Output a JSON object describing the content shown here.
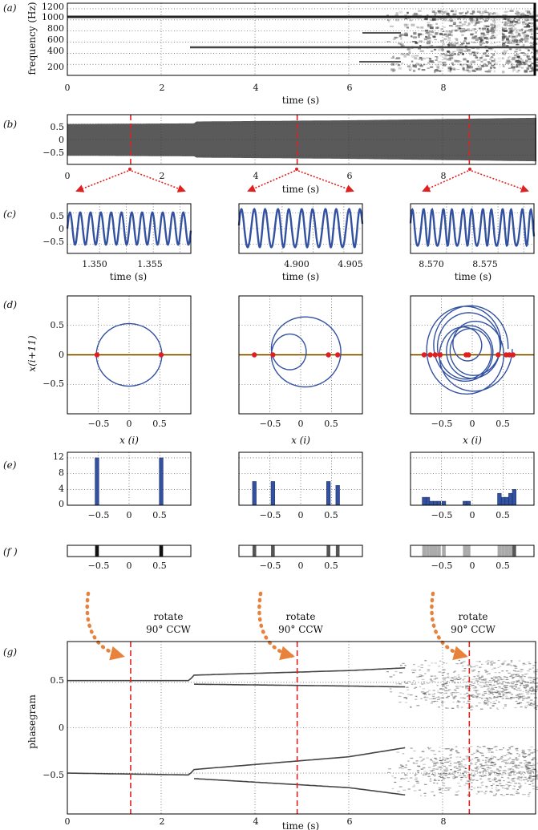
{
  "colors": {
    "blue": "#3251a0",
    "red": "#e02020",
    "orange": "#e8813a",
    "yellow": "#f2b21c",
    "gray": "#5a5a5a"
  },
  "panels": {
    "a": {
      "label": "(a)",
      "ylabel": "frequency (Hz)",
      "xlabel": "time (s)",
      "yticks": [
        "1200",
        "1000",
        "800",
        "600",
        "400",
        "200"
      ],
      "xticks": [
        "0",
        "2",
        "4",
        "6",
        "8"
      ]
    },
    "b": {
      "label": "(b)",
      "xlabel": "time (s)",
      "yticks": [
        "0.5",
        "0",
        "−0.5"
      ],
      "xticks": [
        "0",
        "2",
        "4",
        "6",
        "8"
      ]
    },
    "c": {
      "label": "(c)",
      "xlabel": "time (s)",
      "yticks": [
        "0.5",
        "0",
        "−0.5"
      ],
      "windows": [
        {
          "xticks": [
            "1.350",
            "1.355"
          ]
        },
        {
          "xticks": [
            "4.900",
            "4.905"
          ]
        },
        {
          "xticks": [
            "8.570",
            "8.575"
          ]
        }
      ]
    },
    "d": {
      "label": "(d)",
      "ylabel": "x(i+11)",
      "xlabel": "x (i)",
      "yticks": [
        "0.5",
        "0",
        "−0.5"
      ],
      "xticks": [
        "−0.5",
        "0",
        "0.5"
      ]
    },
    "e": {
      "label": "(e)",
      "yticks": [
        "12",
        "8",
        "4",
        "0"
      ],
      "xticks": [
        "−0.5",
        "0",
        "0.5"
      ]
    },
    "f": {
      "label": "(f )",
      "xticks": [
        "−0.5",
        "0",
        "0.5"
      ]
    },
    "g": {
      "label": "(g)",
      "ylabel": "phasegram",
      "xlabel": "time (s)",
      "yticks": [
        "0.5",
        "0",
        "−0.5"
      ],
      "xticks": [
        "0",
        "2",
        "4",
        "6",
        "8"
      ]
    }
  },
  "annotations": {
    "rotate_line1": "rotate",
    "rotate_line2": "90° CCW"
  },
  "chart_data": [
    {
      "panel": "a",
      "type": "heatmap",
      "title": "",
      "xlabel": "time (s)",
      "ylabel": "frequency (Hz)",
      "xlim": [
        0,
        10
      ],
      "ylim": [
        0,
        1300
      ],
      "tones": [
        {
          "freq": 1040,
          "t_start": 0,
          "t_end": 10
        },
        {
          "freq": 520,
          "t_start": 2.7,
          "t_end": 10
        },
        {
          "freq": 760,
          "t_start": 6.3,
          "t_end": 7.2
        },
        {
          "freq": 260,
          "t_start": 6.2,
          "t_end": 7.2
        }
      ],
      "broadband_region": {
        "t_start": 6.8,
        "t_end": 10,
        "note": "increasingly noisy spectrum"
      }
    },
    {
      "panel": "b",
      "type": "area",
      "xlabel": "time (s)",
      "xlim": [
        0,
        10
      ],
      "ylim": [
        -0.8,
        0.8
      ],
      "envelope": {
        "t": [
          0,
          2.7,
          2.71,
          6.0,
          8.0,
          10.0
        ],
        "upper": [
          0.5,
          0.52,
          0.58,
          0.62,
          0.66,
          0.7
        ],
        "lower": [
          -0.52,
          -0.54,
          -0.58,
          -0.62,
          -0.66,
          -0.7
        ]
      },
      "markers_t": [
        1.35,
        4.9,
        8.57
      ]
    },
    {
      "panel": "c",
      "type": "line",
      "xlabel": "time (s)",
      "ylim": [
        -0.8,
        0.8
      ],
      "series": [
        {
          "xlim": [
            1.347,
            1.3585
          ],
          "period_ms": 0.96,
          "amplitude": 0.52
        },
        {
          "xlim": [
            4.8965,
            4.9065
          ],
          "period_ms": 0.96,
          "amplitude": 0.6,
          "subharmonic": 0.18
        },
        {
          "xlim": [
            8.5665,
            8.5785
          ],
          "period_ms": 0.96,
          "amplitude": 0.55,
          "subharmonic": 0.3
        }
      ]
    },
    {
      "panel": "d",
      "type": "scatter",
      "xlabel": "x (i)",
      "ylabel": "x(i+11)",
      "xlim": [
        -1,
        1
      ],
      "ylim": [
        -1,
        1
      ],
      "section_points": [
        [
          -0.52,
          0.52
        ],
        [
          -0.75,
          -0.45,
          0.45,
          0.6
        ],
        [
          -0.78,
          -0.68,
          -0.6,
          -0.52,
          -0.1,
          -0.06,
          0.42,
          0.55,
          0.6,
          0.66
        ]
      ]
    },
    {
      "panel": "e",
      "type": "bar",
      "xlim": [
        -1,
        1
      ],
      "ylim": [
        0,
        13
      ],
      "bars": [
        [
          {
            "x": -0.52,
            "h": 12
          },
          {
            "x": 0.52,
            "h": 12
          }
        ],
        [
          {
            "x": -0.75,
            "h": 6
          },
          {
            "x": -0.45,
            "h": 6
          },
          {
            "x": 0.45,
            "h": 6
          },
          {
            "x": 0.6,
            "h": 5
          }
        ],
        [
          {
            "x": -0.78,
            "h": 2
          },
          {
            "x": -0.72,
            "h": 2
          },
          {
            "x": -0.66,
            "h": 1
          },
          {
            "x": -0.6,
            "h": 1
          },
          {
            "x": -0.54,
            "h": 1
          },
          {
            "x": -0.46,
            "h": 1
          },
          {
            "x": -0.12,
            "h": 1
          },
          {
            "x": -0.06,
            "h": 1
          },
          {
            "x": 0.44,
            "h": 3
          },
          {
            "x": 0.5,
            "h": 2
          },
          {
            "x": 0.56,
            "h": 2
          },
          {
            "x": 0.62,
            "h": 3
          },
          {
            "x": 0.68,
            "h": 4
          }
        ]
      ]
    },
    {
      "panel": "g",
      "type": "scatter",
      "xlabel": "time (s)",
      "ylabel": "phasegram",
      "xlim": [
        0,
        10
      ],
      "ylim": [
        -0.95,
        0.95
      ],
      "branches": [
        {
          "t": [
            0,
            2.6,
            2.7,
            6.0,
            7.2
          ],
          "y": [
            0.52,
            0.52,
            0.58,
            0.63,
            0.66
          ]
        },
        {
          "t": [
            2.7,
            6.0,
            7.2
          ],
          "y": [
            0.48,
            0.46,
            0.45
          ]
        },
        {
          "t": [
            0,
            2.6,
            2.7,
            6.0,
            7.2
          ],
          "y": [
            -0.5,
            -0.52,
            -0.46,
            -0.32,
            -0.22
          ]
        },
        {
          "t": [
            2.7,
            6.0,
            7.2
          ],
          "y": [
            -0.56,
            -0.66,
            -0.74
          ]
        }
      ],
      "chaotic_region": {
        "t_start": 6.8,
        "t_end": 10
      },
      "markers_t": [
        1.35,
        4.9,
        8.57
      ]
    }
  ]
}
